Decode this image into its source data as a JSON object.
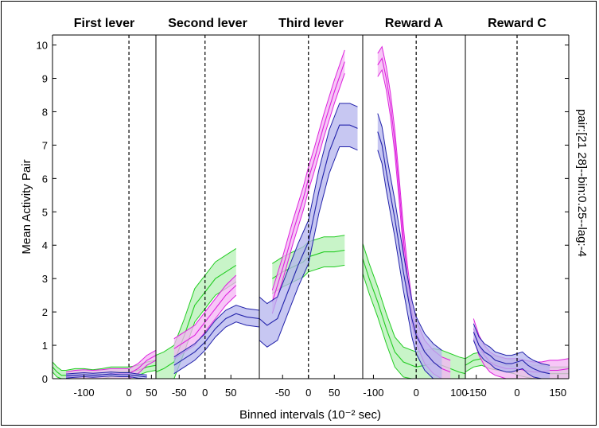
{
  "chart_data": {
    "type": "line",
    "ylabel": "Mean Activity Pair",
    "xlabel": "Binned intervals (10⁻² sec)",
    "side_label": "pair:[21 28]--bin:0.25--lag:-4",
    "ylim": [
      0,
      10.3
    ],
    "yticks": [
      0,
      1,
      2,
      3,
      4,
      5,
      6,
      7,
      8,
      9,
      10
    ],
    "colors": {
      "green": "#22cc22",
      "magenta": "#dd22dd",
      "blue": "#2222aa",
      "green_fill": "#b6f0b6",
      "magenta_fill": "#f4b4f4",
      "blue_fill": "#b4b4ee"
    },
    "panels": [
      {
        "title": "First lever",
        "xlim": [
          -170,
          60
        ],
        "xticks": [
          -100,
          0,
          50
        ],
        "xtick_labels": [
          "-100",
          "0",
          "50"
        ],
        "event_x": 0,
        "series": [
          {
            "color": "green",
            "x": [
              -170,
              -160,
              -150,
              -140,
              -120,
              -100,
              -80,
              -60,
              -40,
              -20,
              0,
              20,
              40,
              60
            ],
            "y": [
              0.35,
              0.2,
              0.1,
              0.1,
              0.15,
              0.15,
              0.12,
              0.15,
              0.2,
              0.2,
              0.2,
              0.25,
              0.35,
              0.4
            ],
            "err": 0.15
          },
          {
            "color": "magenta",
            "x": [
              -140,
              -120,
              -100,
              -80,
              -60,
              -40,
              -20,
              0,
              20,
              40,
              60
            ],
            "y": [
              0.05,
              0.1,
              0.12,
              0.1,
              0.12,
              0.15,
              0.15,
              0.15,
              0.3,
              0.55,
              0.7
            ],
            "err": 0.15
          },
          {
            "color": "blue",
            "x": [
              -140,
              -120,
              -100,
              -80,
              -60,
              -40,
              -20,
              0,
              20,
              40
            ],
            "y": [
              0.08,
              0.1,
              0.12,
              0.1,
              0.12,
              0.14,
              0.12,
              0.12,
              0.08,
              0.05
            ],
            "err": 0.06
          }
        ]
      },
      {
        "title": "Second lever",
        "xlim": [
          -95,
          105
        ],
        "xticks": [
          -50,
          0,
          50
        ],
        "xtick_labels": [
          "-50",
          "0",
          "50"
        ],
        "event_x": 0,
        "series": [
          {
            "color": "green",
            "x": [
              -95,
              -80,
              -60,
              -40,
              -20,
              0,
              20,
              40,
              60
            ],
            "y": [
              0.2,
              0.3,
              0.5,
              1.3,
              2.2,
              2.6,
              3.0,
              3.2,
              3.4
            ],
            "err": 0.5
          },
          {
            "color": "magenta",
            "x": [
              -60,
              -40,
              -20,
              0,
              20,
              40,
              60
            ],
            "y": [
              0.9,
              1.1,
              1.3,
              1.7,
              2.1,
              2.5,
              2.8
            ],
            "err": 0.3
          },
          {
            "color": "blue",
            "x": [
              -60,
              -40,
              -20,
              0,
              20,
              40,
              60,
              80,
              105
            ],
            "y": [
              0.4,
              0.6,
              0.8,
              1.1,
              1.5,
              1.8,
              1.95,
              1.85,
              1.8
            ],
            "err": 0.25
          }
        ]
      },
      {
        "title": "Third lever",
        "xlim": [
          -95,
          105
        ],
        "xticks": [
          -50,
          0,
          50
        ],
        "xtick_labels": [
          "-50",
          "0",
          "50"
        ],
        "event_x": 0,
        "series": [
          {
            "color": "green",
            "x": [
              -70,
              -50,
              -30,
              -10,
              0,
              10,
              30,
              50,
              70
            ],
            "y": [
              3.0,
              3.2,
              3.35,
              3.5,
              3.65,
              3.7,
              3.8,
              3.8,
              3.85
            ],
            "err": 0.45
          },
          {
            "color": "magenta",
            "x": [
              -70,
              -50,
              -30,
              -10,
              0,
              10,
              30,
              50,
              70
            ],
            "y": [
              2.3,
              3.3,
              4.4,
              5.4,
              6.0,
              6.5,
              7.6,
              8.6,
              9.5
            ],
            "err": 0.35
          },
          {
            "color": "blue",
            "x": [
              -95,
              -80,
              -60,
              -40,
              -20,
              0,
              20,
              40,
              60,
              80,
              95
            ],
            "y": [
              1.8,
              1.6,
              1.8,
              2.6,
              3.4,
              4.1,
              5.6,
              6.8,
              7.6,
              7.6,
              7.5
            ],
            "err": 0.65
          }
        ]
      },
      {
        "title": "Reward A",
        "xlim": [
          -125,
          115
        ],
        "xticks": [
          -100,
          0,
          100
        ],
        "xtick_labels": [
          "-100",
          "0",
          "100"
        ],
        "event_x": 0,
        "series": [
          {
            "color": "green",
            "x": [
              -125,
              -110,
              -90,
              -70,
              -50,
              -30,
              -10,
              0,
              20,
              40,
              60,
              80,
              100,
              115
            ],
            "y": [
              3.6,
              3.0,
              2.3,
              1.5,
              0.8,
              0.5,
              0.4,
              0.35,
              0.4,
              0.45,
              0.4,
              0.3,
              0.2,
              0.15
            ],
            "err": 0.45
          },
          {
            "color": "magenta",
            "x": [
              -90,
              -80,
              -70,
              -60,
              -50,
              -40,
              -30,
              -20,
              -10,
              0,
              20,
              40,
              60,
              80
            ],
            "y": [
              9.4,
              9.6,
              9.0,
              8.2,
              7.1,
              5.7,
              4.2,
              3.0,
              2.0,
              1.4,
              0.8,
              0.5,
              0.3,
              0.2
            ],
            "err": 0.35
          },
          {
            "color": "blue",
            "x": [
              -90,
              -80,
              -70,
              -60,
              -50,
              -40,
              -30,
              -20,
              -10,
              0,
              20,
              40,
              60
            ],
            "y": [
              7.4,
              7.0,
              6.2,
              5.5,
              4.8,
              4.0,
              3.2,
              2.5,
              1.8,
              1.3,
              0.8,
              0.5,
              0.3
            ],
            "err": 0.55
          }
        ]
      },
      {
        "title": "Reward C",
        "xlim": [
          -190,
          190
        ],
        "xticks": [
          -150,
          0,
          150
        ],
        "xtick_labels": [
          "-150",
          "0",
          "150"
        ],
        "event_x": 0,
        "series": [
          {
            "color": "green",
            "x": [
              -190,
              -160,
              -130,
              -100,
              -70,
              -40,
              -10,
              0,
              30,
              60,
              90,
              120,
              150,
              190
            ],
            "y": [
              0.4,
              0.55,
              0.6,
              0.5,
              0.45,
              0.4,
              0.35,
              0.3,
              0.25,
              0.2,
              0.2,
              0.15,
              0.15,
              0.15
            ],
            "err": 0.2
          },
          {
            "color": "magenta",
            "x": [
              -160,
              -140,
              -120,
              -100,
              -80,
              -60,
              -40,
              -20,
              0,
              30,
              60,
              90,
              120,
              150,
              190
            ],
            "y": [
              1.5,
              1.0,
              0.7,
              0.5,
              0.4,
              0.35,
              0.3,
              0.3,
              0.3,
              0.25,
              0.2,
              0.2,
              0.25,
              0.25,
              0.3
            ],
            "err": 0.3
          },
          {
            "color": "blue",
            "x": [
              -160,
              -140,
              -120,
              -100,
              -80,
              -60,
              -40,
              -20,
              0,
              20,
              40,
              60,
              90,
              120
            ],
            "y": [
              1.4,
              1.0,
              0.8,
              0.7,
              0.55,
              0.5,
              0.45,
              0.45,
              0.5,
              0.55,
              0.4,
              0.3,
              0.2,
              0.15
            ],
            "err": 0.25
          }
        ]
      }
    ]
  }
}
